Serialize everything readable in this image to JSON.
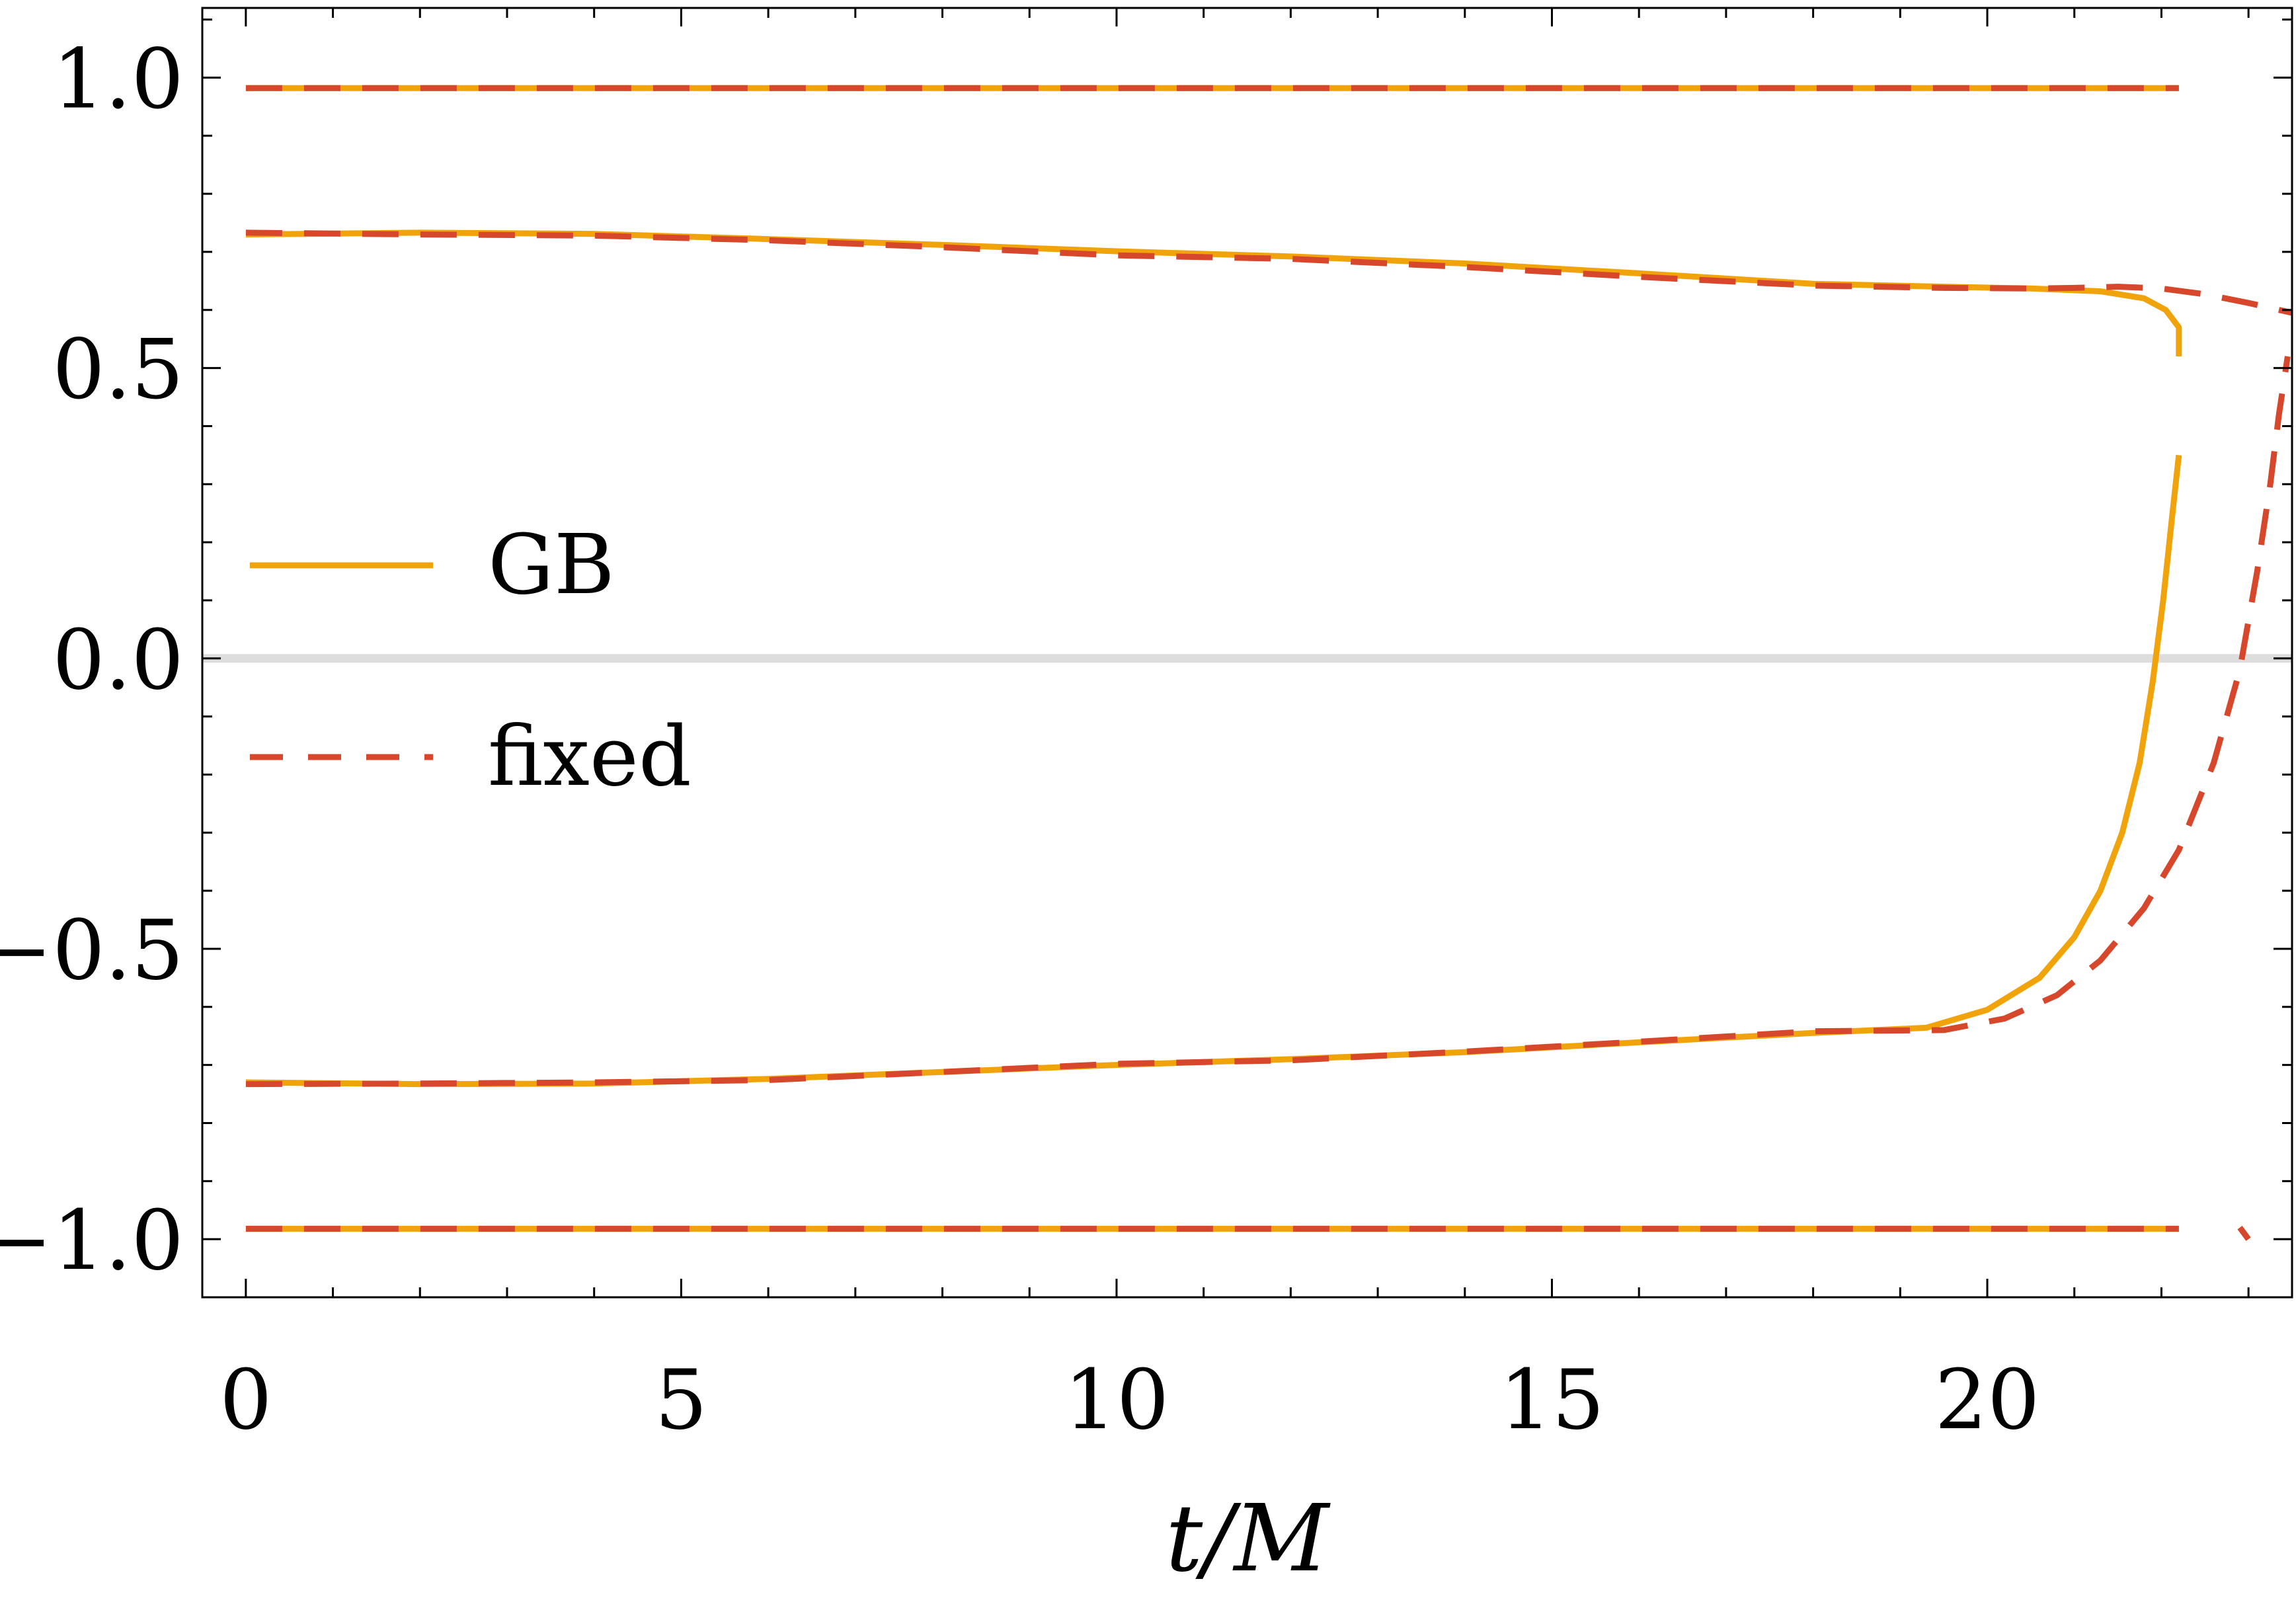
{
  "chart_data": {
    "type": "line",
    "title": "",
    "xlabel": "t/M",
    "ylabel": "",
    "xlim": [
      -0.5,
      23.5
    ],
    "ylim": [
      -1.1,
      1.12
    ],
    "x_ticks": [
      0,
      5,
      10,
      15,
      20
    ],
    "y_ticks": [
      -1.0,
      -0.5,
      0.0,
      0.5,
      1.0
    ],
    "x_tick_labels": [
      "0",
      "5",
      "10",
      "15",
      "20"
    ],
    "y_tick_labels": [
      "−1.0",
      "−0.5",
      "0.0",
      "0.5",
      "1.0"
    ],
    "x_minor_step": 1,
    "y_minor_step": 0.1,
    "grid": false,
    "reference_line": {
      "y": 0,
      "color": "#dddddd"
    },
    "legend": {
      "placement": "center-left",
      "entries": [
        {
          "label": "GB",
          "color": "#f0a30a",
          "style": "solid"
        },
        {
          "label": "fixed",
          "color": "#d7472b",
          "style": "dashed"
        }
      ]
    },
    "series": [
      {
        "legend": "GB",
        "style": "solid",
        "color": "#f0a30a",
        "x": [
          0,
          22.2
        ],
        "y": [
          0.982,
          0.982
        ]
      },
      {
        "legend": "GB",
        "style": "solid",
        "color": "#f0a30a",
        "x": [
          0,
          22.2
        ],
        "y": [
          -0.982,
          -0.982
        ]
      },
      {
        "legend": "GB",
        "style": "solid",
        "color": "#f0a30a",
        "x": [
          0,
          2,
          4,
          6,
          8,
          10,
          12,
          14,
          16,
          18,
          19.5,
          20.5,
          21.3,
          21.8,
          22.05,
          22.2,
          22.2
        ],
        "y": [
          0.73,
          0.733,
          0.731,
          0.722,
          0.712,
          0.701,
          0.692,
          0.68,
          0.663,
          0.645,
          0.64,
          0.637,
          0.632,
          0.62,
          0.6,
          0.57,
          0.52
        ]
      },
      {
        "legend": "GB",
        "style": "solid",
        "color": "#f0a30a",
        "x": [
          0,
          2,
          4,
          6,
          8,
          10,
          12,
          14,
          16,
          18,
          19.3,
          20,
          20.6,
          21,
          21.3,
          21.55,
          21.75,
          21.9,
          22.02,
          22.12,
          22.2
        ],
        "y": [
          -0.73,
          -0.733,
          -0.732,
          -0.724,
          -0.712,
          -0.7,
          -0.69,
          -0.678,
          -0.661,
          -0.645,
          -0.636,
          -0.605,
          -0.55,
          -0.48,
          -0.4,
          -0.3,
          -0.18,
          -0.04,
          0.1,
          0.24,
          0.35
        ]
      },
      {
        "legend": "fixed",
        "style": "dashed",
        "color": "#d7472b",
        "x": [
          0,
          22.2
        ],
        "y": [
          0.982,
          0.982
        ]
      },
      {
        "legend": "fixed",
        "style": "dashed",
        "color": "#d7472b",
        "x": [
          0,
          22.2
        ],
        "y": [
          -0.982,
          -0.982
        ]
      },
      {
        "legend": "fixed",
        "style": "dashed",
        "color": "#d7472b",
        "x": [
          0,
          2,
          4,
          6,
          8,
          10,
          12,
          14,
          16,
          18,
          19.5,
          20.5,
          21,
          21.5,
          22,
          22.5,
          23,
          23.5
        ],
        "y": [
          0.733,
          0.73,
          0.728,
          0.72,
          0.708,
          0.694,
          0.688,
          0.674,
          0.657,
          0.642,
          0.638,
          0.637,
          0.638,
          0.64,
          0.637,
          0.627,
          0.612,
          0.595
        ]
      },
      {
        "legend": "fixed",
        "style": "dashed",
        "color": "#d7472b",
        "x": [
          0,
          2,
          4,
          6,
          8,
          10,
          12,
          14,
          16,
          18,
          19.5,
          20.2,
          20.8,
          21.3,
          21.8,
          22.2,
          22.6,
          22.9,
          23.1,
          23.25,
          23.35,
          23.45
        ],
        "y": [
          -0.733,
          -0.732,
          -0.73,
          -0.726,
          -0.712,
          -0.698,
          -0.692,
          -0.677,
          -0.66,
          -0.642,
          -0.64,
          -0.62,
          -0.58,
          -0.52,
          -0.43,
          -0.33,
          -0.18,
          -0.02,
          0.15,
          0.3,
          0.42,
          0.52
        ]
      },
      {
        "legend": "fixed",
        "style": "dashed",
        "color": "#d7472b",
        "x": [
          22.9,
          23.0
        ],
        "y": [
          -0.98,
          -1.0
        ]
      }
    ]
  }
}
